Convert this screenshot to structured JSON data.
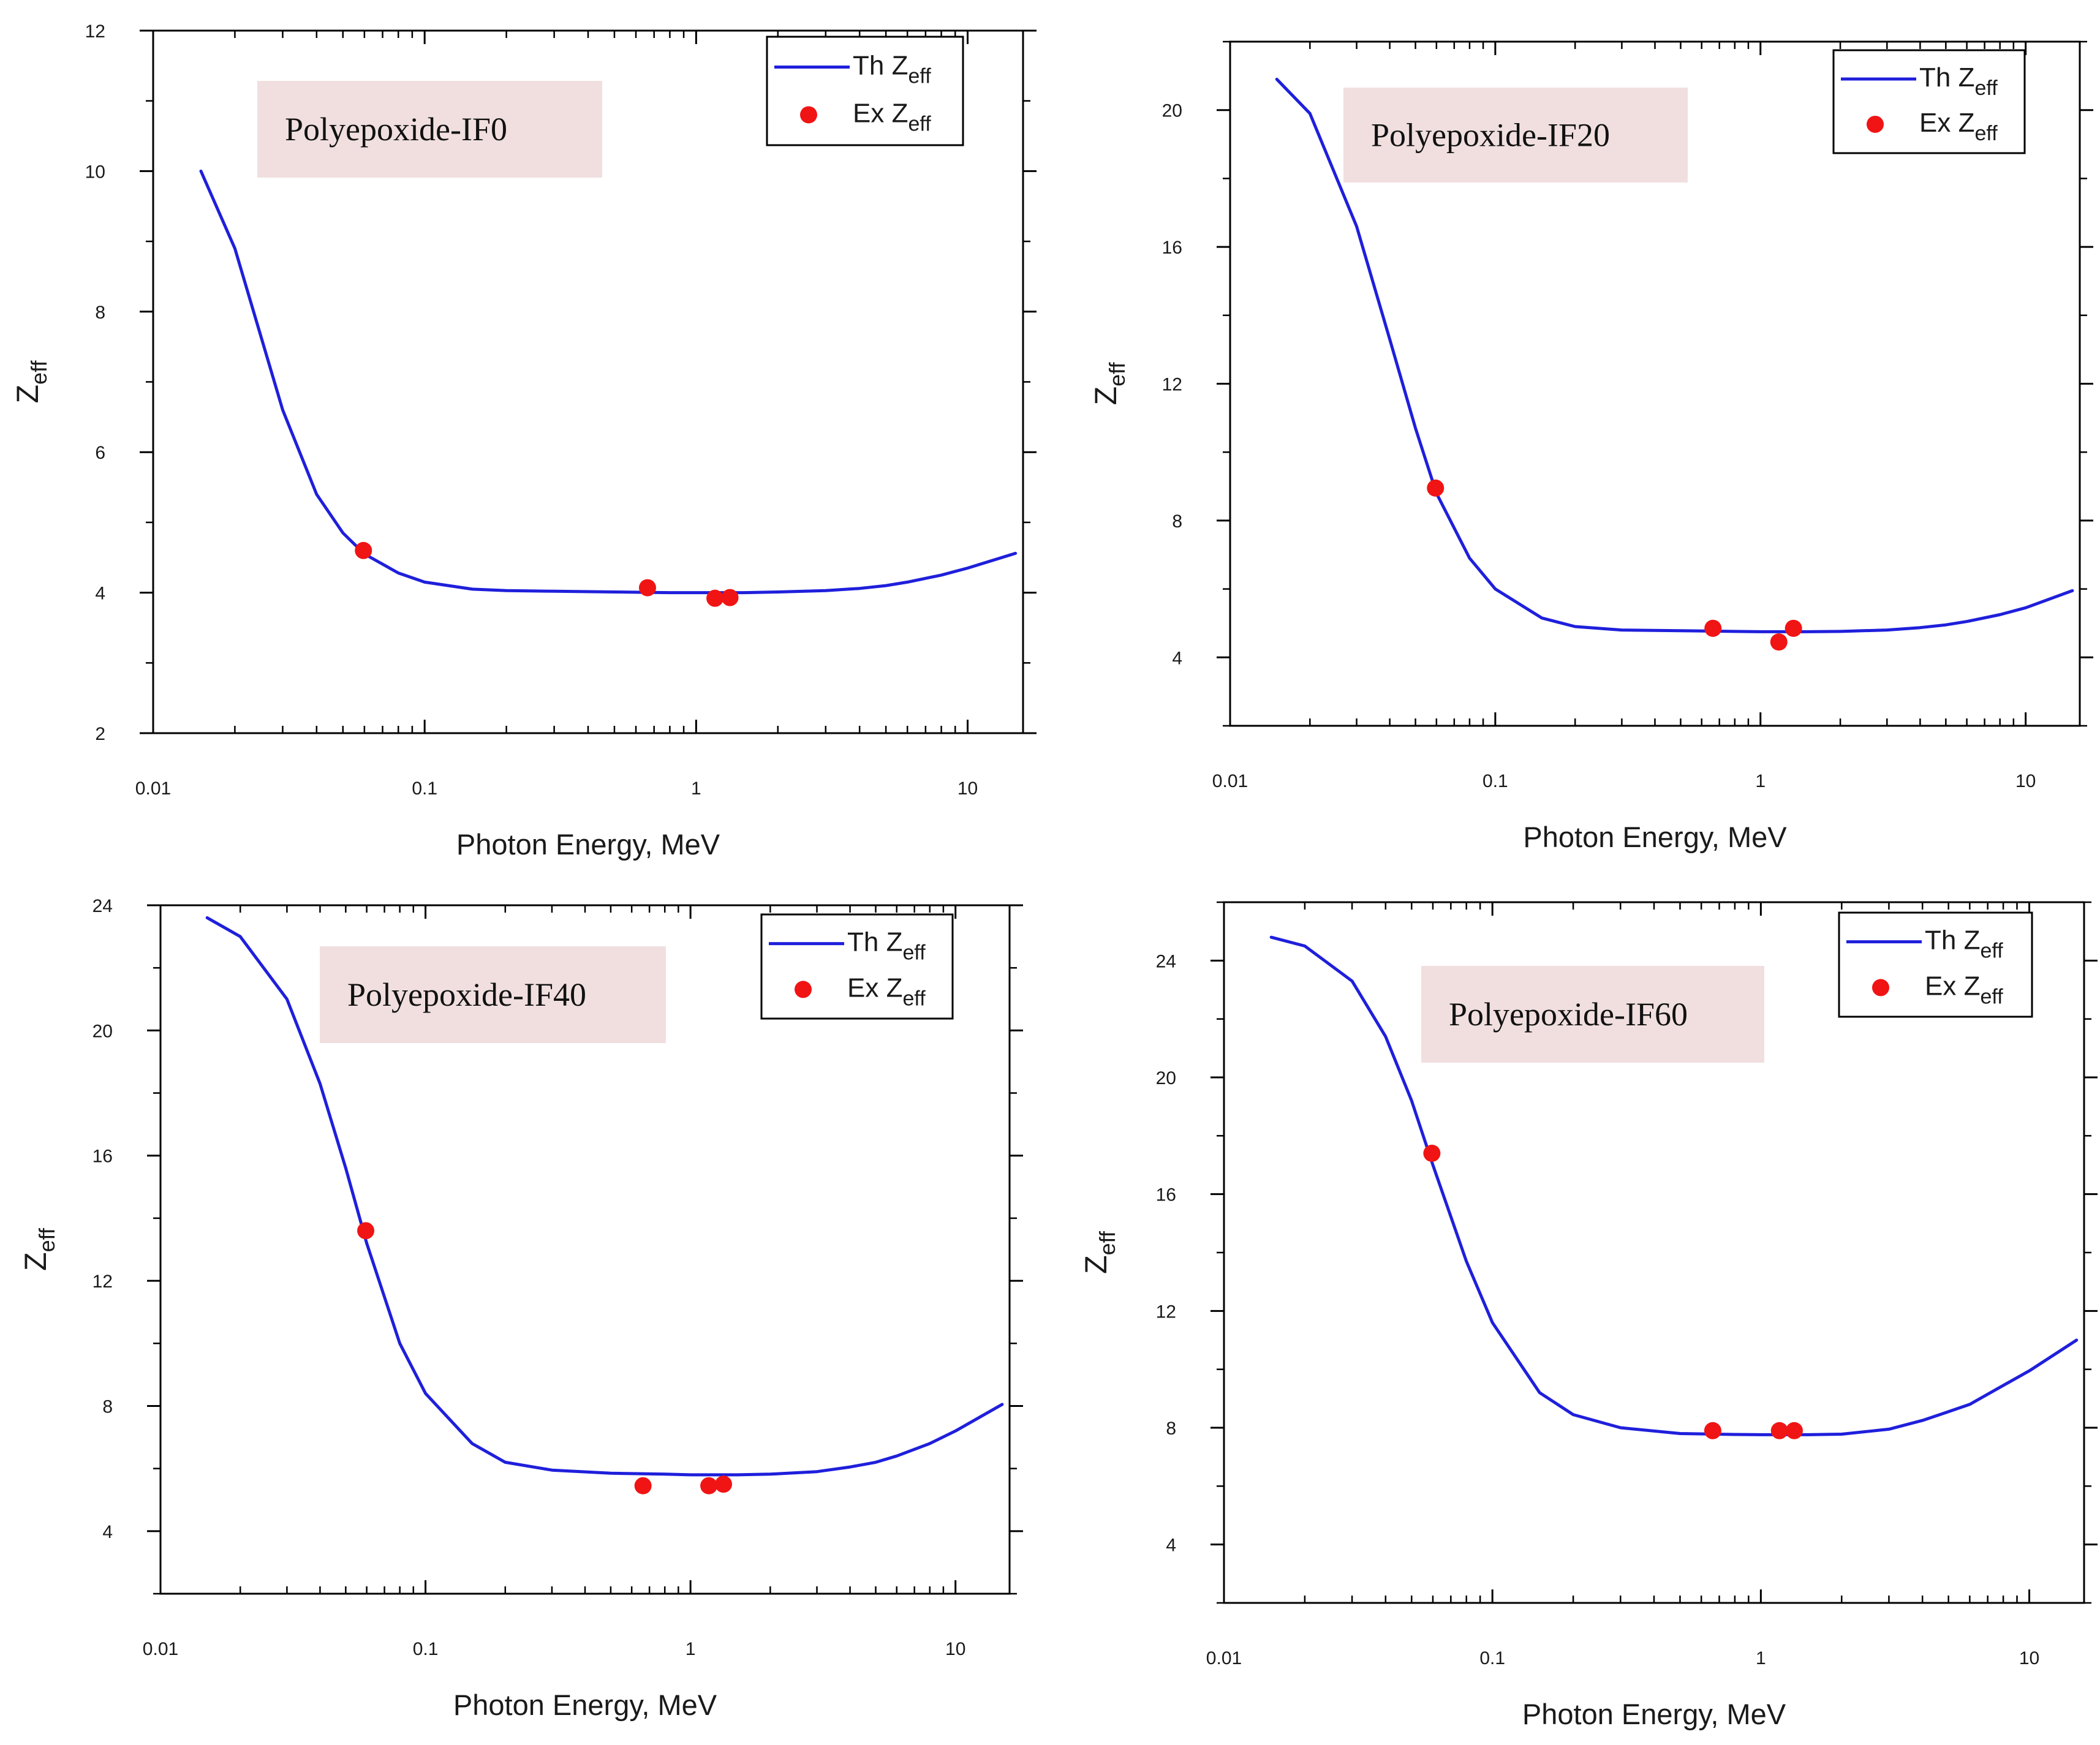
{
  "colors": {
    "theory_line": "#1f1fdc",
    "experiment_marker": "#f01414",
    "label_box": "#f1dfdf",
    "axis": "#000000"
  },
  "legend": {
    "theory_label": "Th Z",
    "experiment_label": "Ex Z",
    "subscript": "eff"
  },
  "chart_data": [
    {
      "type": "line+scatter",
      "title": "Polyepoxide-IF0",
      "xlabel": "Photon Energy, MeV",
      "ylabel": "Z",
      "ylabel_sub": "eff",
      "xscale": "log",
      "xlim": [
        0.01,
        16
      ],
      "ylim": [
        2,
        12
      ],
      "x_ticks": [
        0.01,
        0.1,
        1,
        10
      ],
      "x_tick_labels": [
        "0.01",
        "0.1",
        "1",
        "10"
      ],
      "y_ticks": [
        2,
        4,
        6,
        8,
        10,
        12
      ],
      "y_tick_labels": [
        "2",
        "4",
        "6",
        "8",
        "10",
        "12"
      ],
      "y_minor_ticks": [
        3,
        5,
        7,
        9,
        11
      ],
      "legend_position": "top-right",
      "series": [
        {
          "name": "Th Zeff",
          "kind": "line",
          "x": [
            0.015,
            0.02,
            0.03,
            0.04,
            0.05,
            0.06,
            0.08,
            0.1,
            0.15,
            0.2,
            0.3,
            0.5,
            0.8,
            1,
            1.5,
            2,
            3,
            4,
            5,
            6,
            8,
            10,
            15
          ],
          "y": [
            10.0,
            8.9,
            6.6,
            5.4,
            4.85,
            4.55,
            4.28,
            4.15,
            4.05,
            4.03,
            4.02,
            4.01,
            4.0,
            4.0,
            4.0,
            4.01,
            4.03,
            4.06,
            4.1,
            4.15,
            4.25,
            4.35,
            4.56
          ]
        },
        {
          "name": "Ex Zeff",
          "kind": "scatter",
          "x": [
            0.0595,
            0.662,
            1.173,
            1.332
          ],
          "y": [
            4.6,
            4.07,
            3.92,
            3.93
          ]
        }
      ]
    },
    {
      "type": "line+scatter",
      "title": "Polyepoxide-IF20",
      "xlabel": "Photon Energy, MeV",
      "ylabel": "Z",
      "ylabel_sub": "eff",
      "xscale": "log",
      "xlim": [
        0.01,
        16
      ],
      "ylim": [
        2,
        22
      ],
      "x_ticks": [
        0.01,
        0.1,
        1,
        10
      ],
      "x_tick_labels": [
        "0.01",
        "0.1",
        "1",
        "10"
      ],
      "y_ticks": [
        4,
        8,
        12,
        16,
        20
      ],
      "y_tick_labels": [
        "4",
        "8",
        "12",
        "16",
        "20"
      ],
      "y_minor_ticks": [
        2,
        6,
        10,
        14,
        18,
        22
      ],
      "legend_position": "top-right",
      "series": [
        {
          "name": "Th Zeff",
          "kind": "line",
          "x": [
            0.015,
            0.02,
            0.03,
            0.04,
            0.05,
            0.06,
            0.08,
            0.1,
            0.15,
            0.2,
            0.3,
            0.5,
            0.8,
            1,
            1.5,
            2,
            3,
            4,
            5,
            6,
            8,
            10,
            15
          ],
          "y": [
            20.9,
            19.9,
            16.6,
            13.3,
            10.7,
            8.8,
            6.9,
            6.0,
            5.15,
            4.9,
            4.8,
            4.78,
            4.76,
            4.75,
            4.75,
            4.76,
            4.8,
            4.87,
            4.95,
            5.05,
            5.25,
            5.45,
            5.95
          ]
        },
        {
          "name": "Ex Zeff",
          "kind": "scatter",
          "x": [
            0.0595,
            0.662,
            1.173,
            1.332
          ],
          "y": [
            8.95,
            4.85,
            4.45,
            4.85
          ]
        }
      ]
    },
    {
      "type": "line+scatter",
      "title": "Polyepoxide-IF40",
      "xlabel": "Photon Energy, MeV",
      "ylabel": "Z",
      "ylabel_sub": "eff",
      "xscale": "log",
      "xlim": [
        0.01,
        16
      ],
      "ylim": [
        2,
        24
      ],
      "x_ticks": [
        0.01,
        0.1,
        1,
        10
      ],
      "x_tick_labels": [
        "0.01",
        "0.1",
        "1",
        "10"
      ],
      "y_ticks": [
        4,
        8,
        12,
        16,
        20,
        24
      ],
      "y_tick_labels": [
        "4",
        "8",
        "12",
        "16",
        "20",
        "24"
      ],
      "y_minor_ticks": [
        2,
        6,
        10,
        14,
        18,
        22
      ],
      "legend_position": "top-right",
      "series": [
        {
          "name": "Th Zeff",
          "kind": "line",
          "x": [
            0.015,
            0.02,
            0.03,
            0.04,
            0.05,
            0.06,
            0.08,
            0.1,
            0.15,
            0.2,
            0.3,
            0.5,
            0.8,
            1,
            1.5,
            2,
            3,
            4,
            5,
            6,
            8,
            10,
            15
          ],
          "y": [
            23.6,
            23.0,
            21.0,
            18.3,
            15.6,
            13.2,
            10.0,
            8.4,
            6.8,
            6.2,
            5.95,
            5.85,
            5.82,
            5.8,
            5.8,
            5.82,
            5.9,
            6.05,
            6.2,
            6.4,
            6.8,
            7.2,
            8.05
          ]
        },
        {
          "name": "Ex Zeff",
          "kind": "scatter",
          "x": [
            0.0595,
            0.662,
            1.173,
            1.332
          ],
          "y": [
            13.6,
            5.45,
            5.45,
            5.5
          ]
        }
      ]
    },
    {
      "type": "line+scatter",
      "title": "Polyepoxide-IF60",
      "xlabel": "Photon Energy, MeV",
      "ylabel": "Z",
      "ylabel_sub": "eff",
      "xscale": "log",
      "xlim": [
        0.01,
        16
      ],
      "ylim": [
        2,
        26
      ],
      "x_ticks": [
        0.01,
        0.1,
        1,
        10
      ],
      "x_tick_labels": [
        "0.01",
        "0.1",
        "1",
        "10"
      ],
      "y_ticks": [
        4,
        8,
        12,
        16,
        20,
        24
      ],
      "y_tick_labels": [
        "4",
        "8",
        "12",
        "16",
        "20",
        "24"
      ],
      "y_minor_ticks": [
        2,
        6,
        10,
        14,
        18,
        22,
        26
      ],
      "legend_position": "top-right",
      "series": [
        {
          "name": "Th Zeff",
          "kind": "line",
          "x": [
            0.015,
            0.02,
            0.03,
            0.04,
            0.05,
            0.06,
            0.08,
            0.1,
            0.15,
            0.2,
            0.3,
            0.5,
            0.8,
            1,
            1.5,
            2,
            3,
            4,
            5,
            6,
            8,
            10,
            15
          ],
          "y": [
            24.8,
            24.5,
            23.3,
            21.4,
            19.2,
            17.0,
            13.7,
            11.6,
            9.2,
            8.45,
            8.0,
            7.8,
            7.77,
            7.76,
            7.76,
            7.78,
            7.95,
            8.25,
            8.55,
            8.8,
            9.45,
            9.95,
            11.0
          ]
        },
        {
          "name": "Ex Zeff",
          "kind": "scatter",
          "x": [
            0.0595,
            0.662,
            1.173,
            1.332
          ],
          "y": [
            17.4,
            7.9,
            7.9,
            7.9
          ]
        }
      ]
    }
  ]
}
